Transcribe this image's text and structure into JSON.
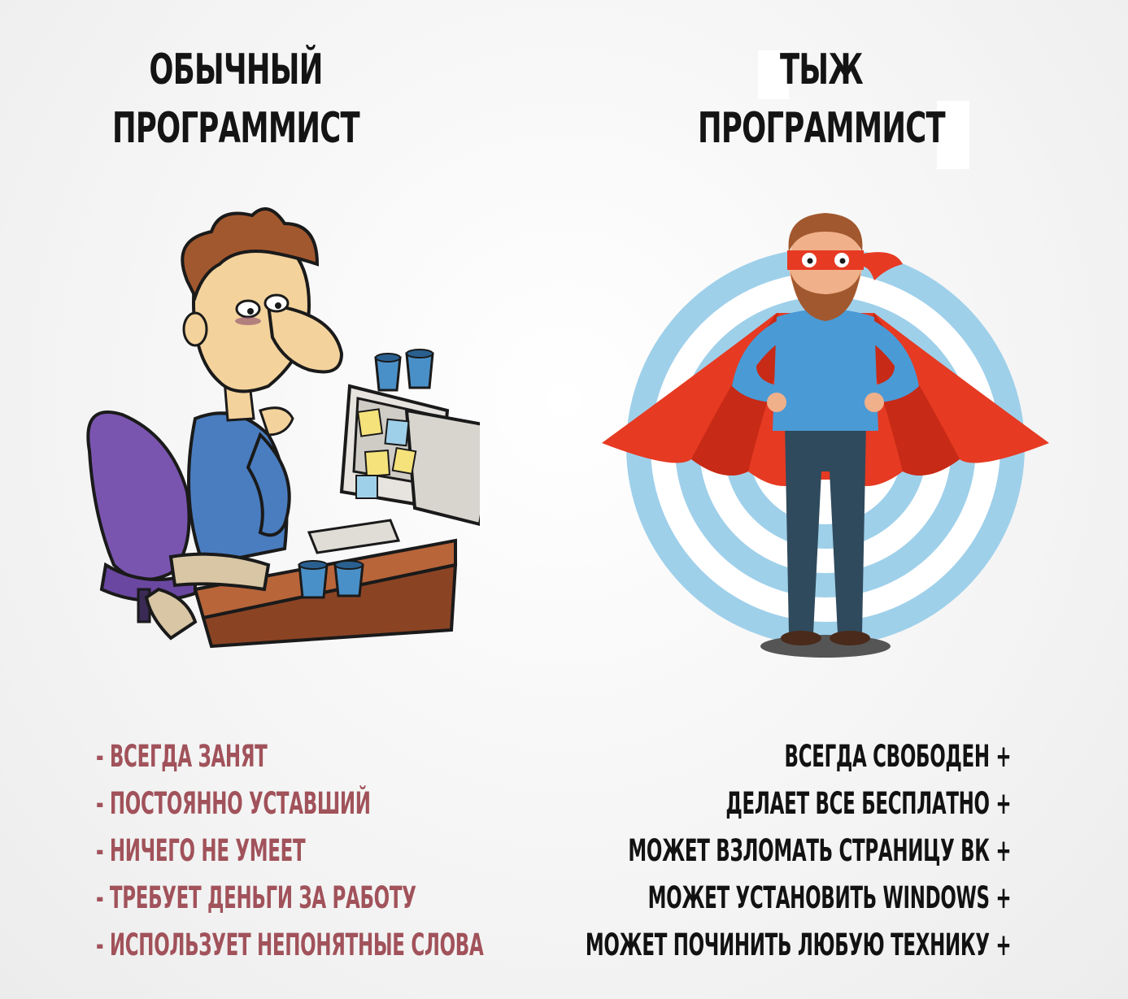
{
  "left": {
    "title": [
      "ОБЫЧНЫЙ",
      "ПРОГРАММИСТ"
    ],
    "items": [
      "- ВСЕГДА ЗАНЯТ",
      "- ПОСТОЯННО УСТАВШИЙ",
      "- НИЧЕГО НЕ УМЕЕТ",
      "- ТРЕБУЕТ ДЕНЬГИ ЗА РАБОТУ",
      "- ИСПОЛЬЗУЕТ НЕПОНЯТНЫЕ СЛОВА"
    ],
    "illustration": "tired-programmer-at-computer"
  },
  "right": {
    "title": [
      "ТЫЖ",
      "ПРОГРАММИСТ"
    ],
    "items": [
      "ВСЕГДА СВОБОДЕН +",
      "ДЕЛАЕТ ВСЕ БЕСПЛАТНО +",
      "МОЖЕТ ВЗЛОМАТЬ СТРАНИЦУ ВК +",
      "МОЖЕТ УСТАНОВИТЬ WINDOWS +",
      "МОЖЕТ ПОЧИНИТЬ ЛЮБУЮ ТЕХНИКУ +"
    ],
    "illustration": "superhero-programmer-with-cape"
  },
  "colors": {
    "title": "#141414",
    "left_items": "#a1525a",
    "right_items": "#121212",
    "target_rings": "#9fd0ea",
    "cape": "#e63a22",
    "shirt": "#4a9ad6"
  }
}
